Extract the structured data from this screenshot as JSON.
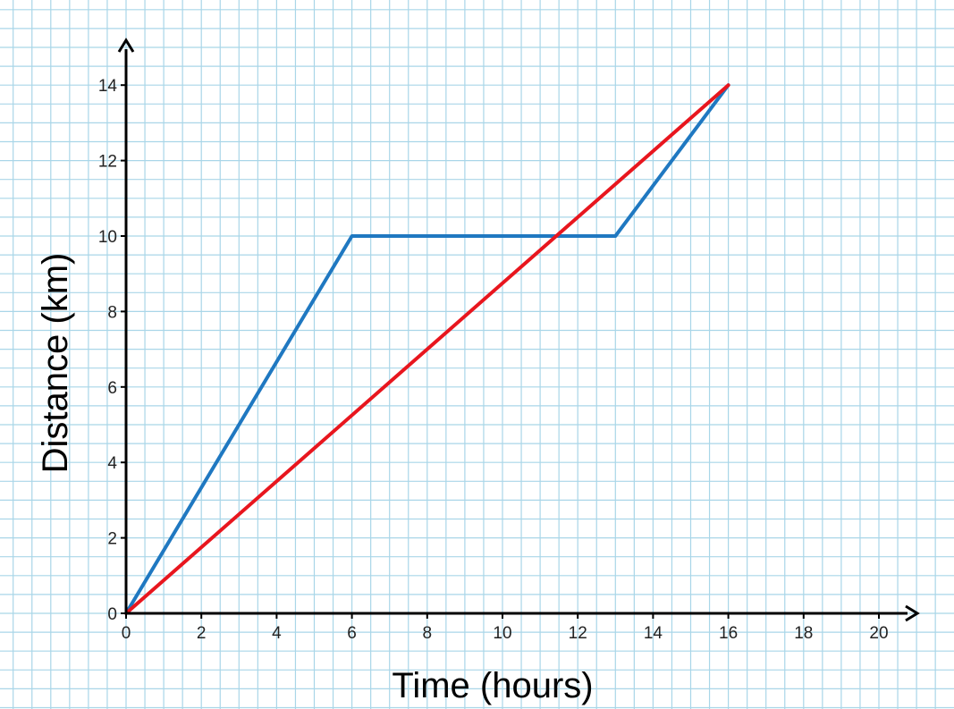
{
  "chart_data": {
    "type": "line",
    "xlabel": "Time (hours)",
    "ylabel": "Distance (km)",
    "xlim": [
      0,
      20
    ],
    "ylim": [
      0,
      14
    ],
    "x_ticks": [
      "0",
      "2",
      "4",
      "6",
      "8",
      "10",
      "12",
      "14",
      "16",
      "18",
      "20"
    ],
    "y_ticks": [
      "0",
      "2",
      "4",
      "6",
      "8",
      "10",
      "12",
      "14"
    ],
    "grid": true,
    "grid_minor_step": 0.5,
    "series": [
      {
        "color": "#1f78c1",
        "points": [
          [
            0,
            0
          ],
          [
            6,
            10
          ],
          [
            13,
            10
          ],
          [
            16,
            14
          ]
        ]
      },
      {
        "color": "#e8161e",
        "points": [
          [
            0,
            0
          ],
          [
            16,
            14
          ]
        ]
      }
    ],
    "colors": {
      "grid": "#a9d6e8",
      "axis": "#000000"
    }
  }
}
